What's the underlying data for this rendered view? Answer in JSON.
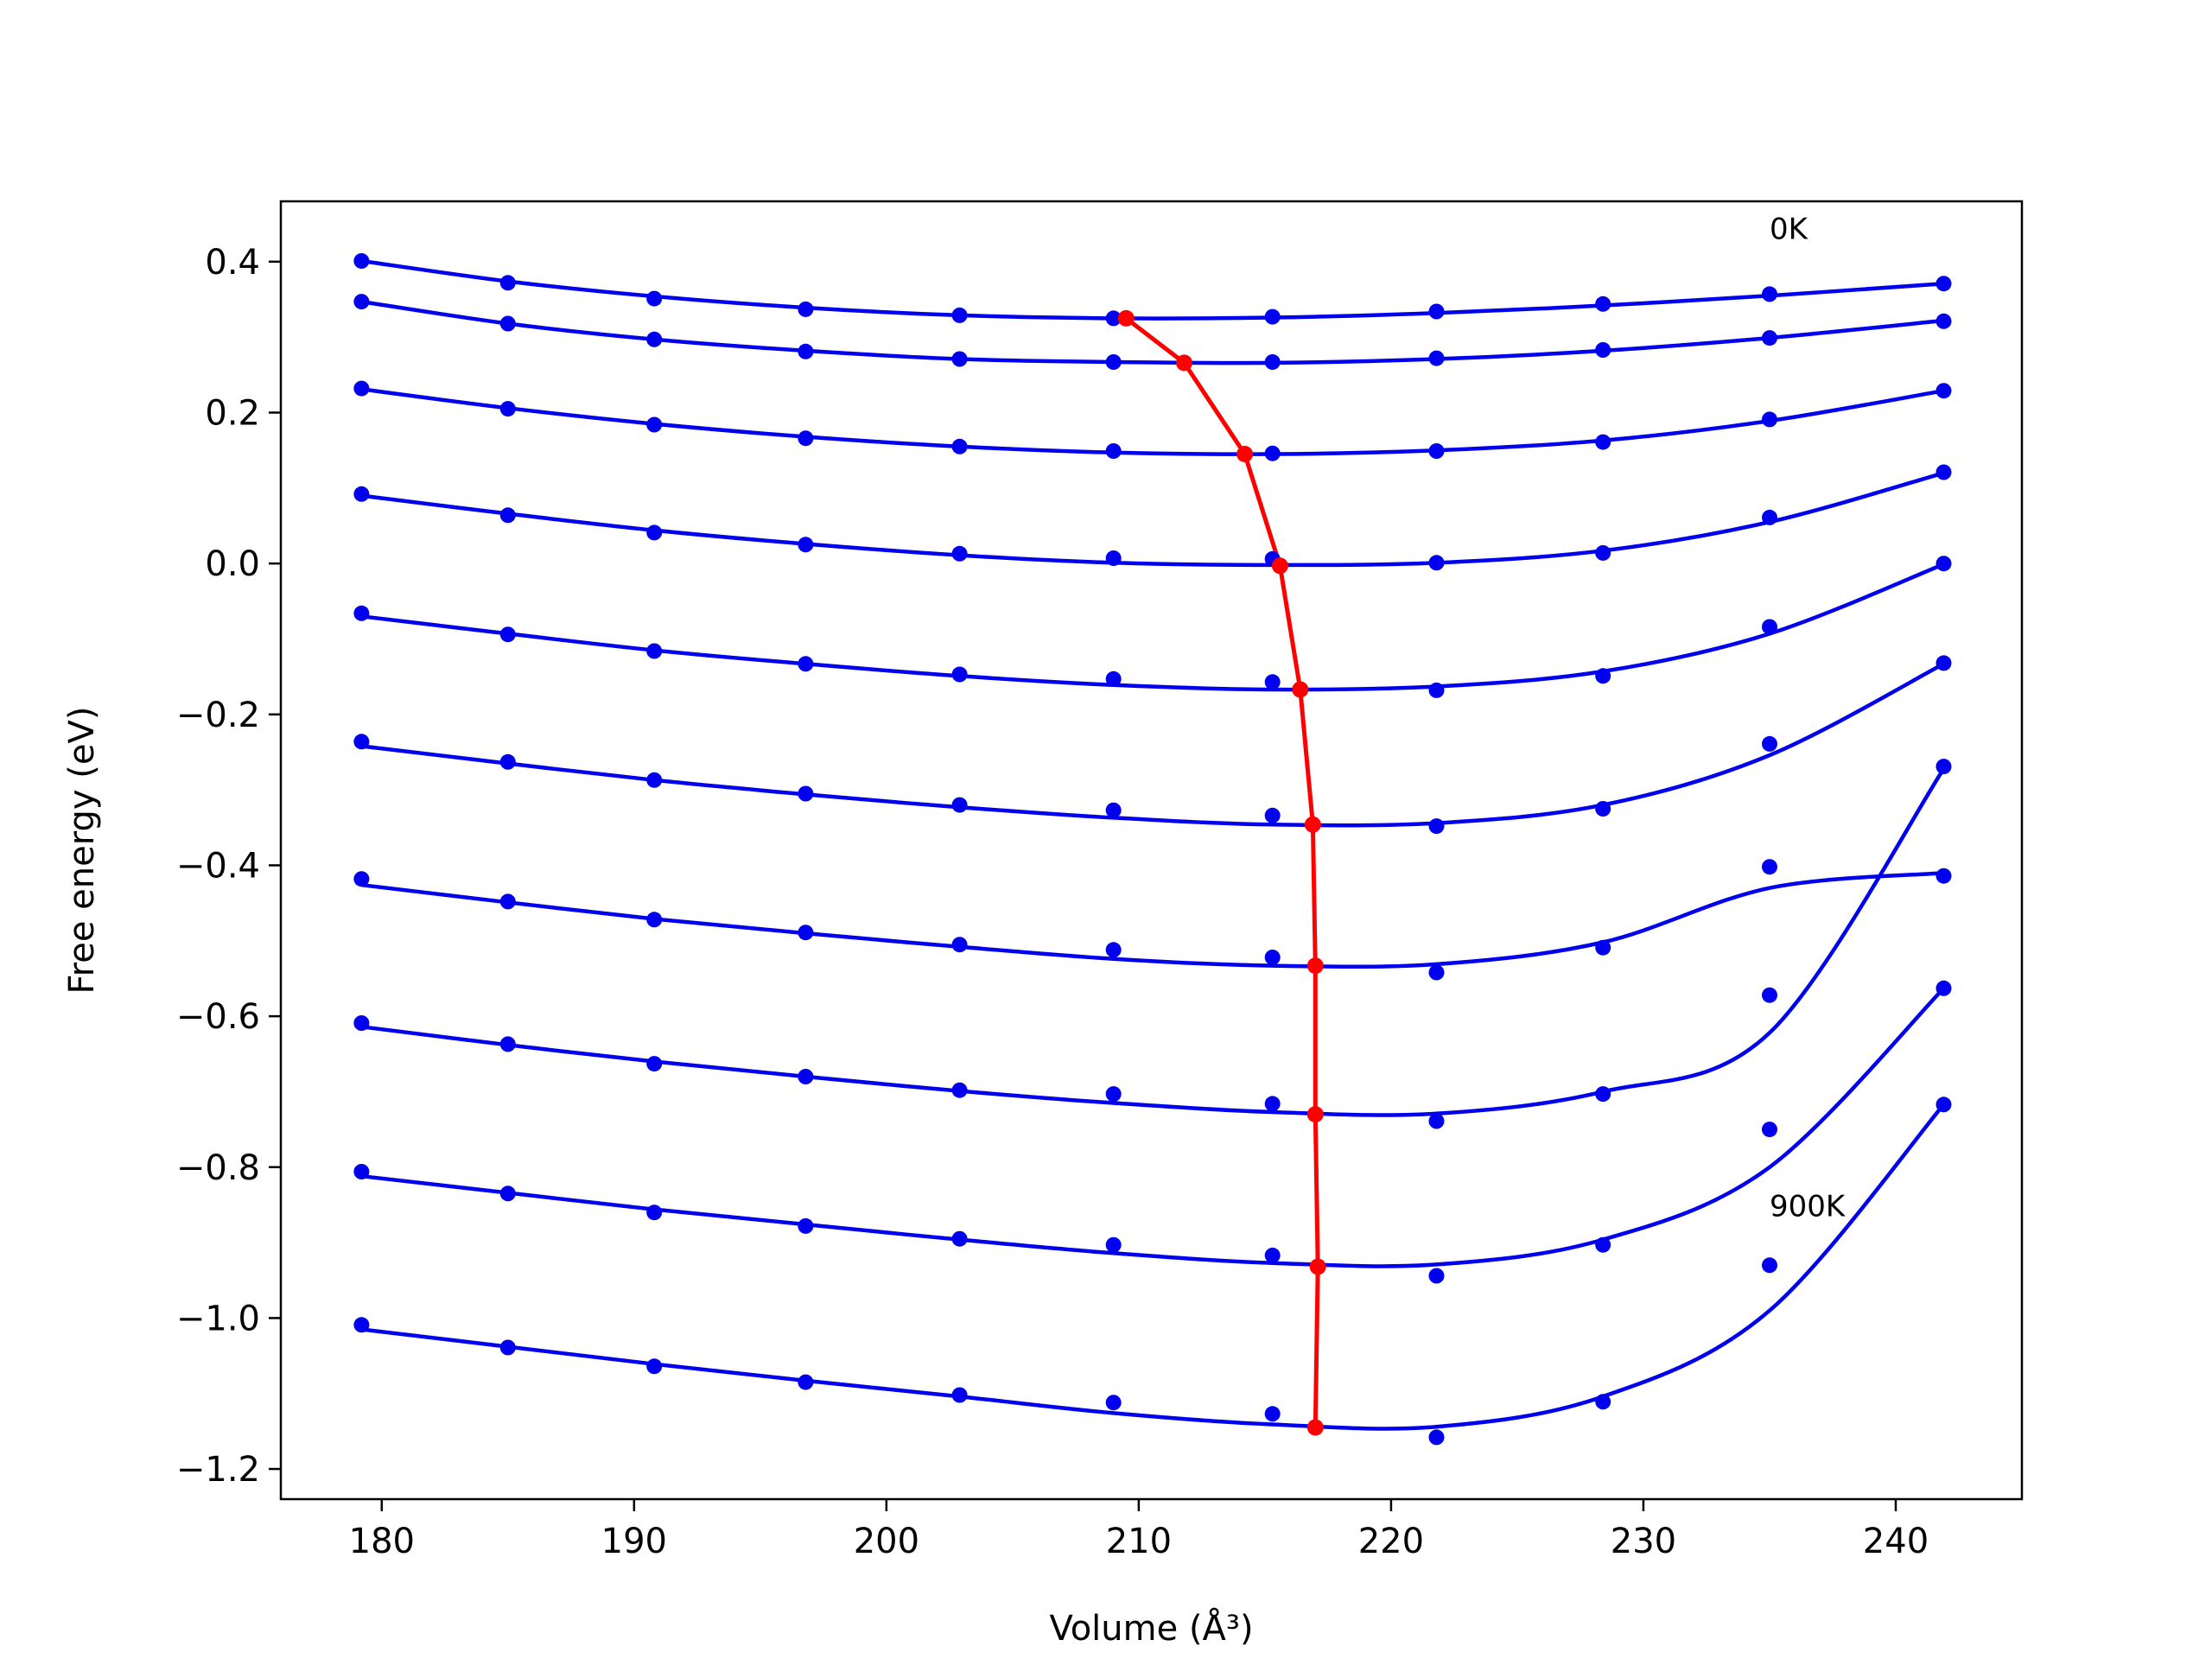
{
  "chart_data": {
    "type": "line",
    "xlabel": "Volume (Å³)",
    "ylabel": "Free energy (eV)",
    "xlim": [
      176,
      245
    ],
    "ylim": [
      -1.24,
      0.48
    ],
    "xticks": [
      180,
      190,
      200,
      210,
      220,
      230,
      240
    ],
    "yticks": [
      0.4,
      0.2,
      0.0,
      -0.2,
      -0.4,
      -0.6,
      -0.8,
      -1.0,
      -1.2
    ],
    "ytick_labels": [
      "0.4",
      "0.2",
      "0.0",
      "−0.2",
      "−0.4",
      "−0.6",
      "−0.8",
      "−1.0",
      "−1.2"
    ],
    "grid": false,
    "legend": "none",
    "annotations": [
      {
        "text": "0K",
        "x": 235.0,
        "y": 0.43
      },
      {
        "text": "900K",
        "x": 235.0,
        "y": -0.865
      }
    ],
    "colors": {
      "points": "#0000ee",
      "fits": "#0000ee",
      "minima": "#ff0000"
    },
    "x": [
      179.2,
      185.0,
      190.8,
      196.8,
      202.9,
      209.0,
      215.3,
      221.8,
      228.4,
      235.0,
      241.9
    ],
    "series": [
      {
        "points": [
          0.401,
          0.372,
          0.351,
          0.337,
          0.329,
          0.325,
          0.327,
          0.334,
          0.344,
          0.357,
          0.371
        ],
        "fit": [
          0.401,
          0.374,
          0.354,
          0.339,
          0.329,
          0.325,
          0.326,
          0.332,
          0.342,
          0.355,
          0.371
        ]
      },
      {
        "points": [
          0.347,
          0.318,
          0.297,
          0.281,
          0.271,
          0.267,
          0.267,
          0.272,
          0.283,
          0.299,
          0.321
        ],
        "fit": [
          0.347,
          0.318,
          0.297,
          0.282,
          0.271,
          0.267,
          0.266,
          0.271,
          0.282,
          0.299,
          0.322
        ]
      },
      {
        "points": [
          0.232,
          0.205,
          0.184,
          0.166,
          0.155,
          0.149,
          0.146,
          0.149,
          0.161,
          0.191,
          0.229
        ],
        "fit": [
          0.231,
          0.206,
          0.185,
          0.168,
          0.155,
          0.147,
          0.145,
          0.15,
          0.163,
          0.189,
          0.229
        ]
      },
      {
        "points": [
          0.092,
          0.064,
          0.041,
          0.025,
          0.013,
          0.007,
          0.006,
          0.001,
          0.014,
          0.061,
          0.121
        ],
        "fit": [
          0.09,
          0.066,
          0.044,
          0.026,
          0.011,
          0.001,
          -0.002,
          0.001,
          0.017,
          0.055,
          0.12
        ]
      },
      {
        "points": [
          -0.066,
          -0.094,
          -0.116,
          -0.133,
          -0.147,
          -0.153,
          -0.157,
          -0.168,
          -0.149,
          -0.084,
          0.0
        ],
        "fit": [
          -0.07,
          -0.093,
          -0.115,
          -0.133,
          -0.149,
          -0.161,
          -0.167,
          -0.163,
          -0.143,
          -0.093,
          -0.001
        ]
      },
      {
        "points": [
          -0.236,
          -0.263,
          -0.287,
          -0.305,
          -0.32,
          -0.327,
          -0.334,
          -0.348,
          -0.325,
          -0.239,
          -0.132
        ],
        "fit": [
          -0.242,
          -0.265,
          -0.287,
          -0.306,
          -0.323,
          -0.337,
          -0.346,
          -0.344,
          -0.32,
          -0.254,
          -0.133
        ]
      },
      {
        "points": [
          -0.418,
          -0.448,
          -0.472,
          -0.489,
          -0.505,
          -0.512,
          -0.522,
          -0.542,
          -0.509,
          -0.402,
          -0.414
        ],
        "fit": [
          -0.426,
          -0.449,
          -0.471,
          -0.49,
          -0.508,
          -0.524,
          -0.533,
          -0.531,
          -0.502,
          -0.43,
          -0.41
        ]
      },
      {
        "points": [
          -0.609,
          -0.637,
          -0.663,
          -0.68,
          -0.698,
          -0.703,
          -0.716,
          -0.739,
          -0.703,
          -0.572,
          -0.269
        ],
        "fit": [
          -0.614,
          -0.638,
          -0.66,
          -0.68,
          -0.699,
          -0.715,
          -0.727,
          -0.729,
          -0.7,
          -0.622,
          -0.272
        ]
      },
      {
        "points": [
          -0.806,
          -0.835,
          -0.86,
          -0.878,
          -0.895,
          -0.903,
          -0.917,
          -0.944,
          -0.903,
          -0.75,
          -0.563
        ],
        "fit": [
          -0.812,
          -0.834,
          -0.856,
          -0.876,
          -0.896,
          -0.914,
          -0.927,
          -0.929,
          -0.896,
          -0.8,
          -0.563
        ]
      },
      {
        "points": [
          -1.009,
          -1.039,
          -1.064,
          -1.085,
          -1.102,
          -1.112,
          -1.127,
          -1.158,
          -1.111,
          -0.93,
          -0.717
        ],
        "fit": [
          -1.015,
          -1.038,
          -1.061,
          -1.083,
          -1.104,
          -1.126,
          -1.141,
          -1.144,
          -1.104,
          -0.99,
          -0.717
        ]
      }
    ],
    "minima": {
      "x": [
        209.5,
        211.8,
        214.2,
        215.6,
        216.4,
        216.9,
        217.0,
        217.0,
        217.1,
        217.0
      ],
      "y": [
        0.325,
        0.266,
        0.145,
        -0.003,
        -0.167,
        -0.346,
        -0.533,
        -0.73,
        -0.932,
        -1.145
      ]
    }
  }
}
